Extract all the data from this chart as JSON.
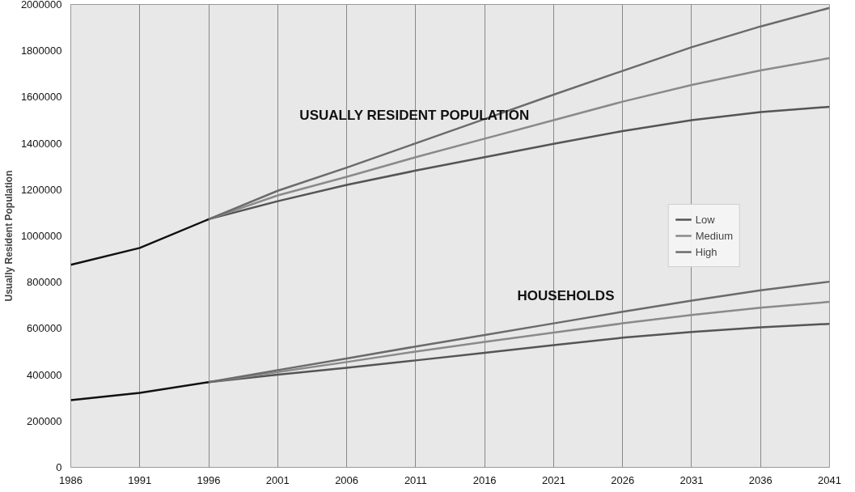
{
  "chart_data": {
    "type": "line",
    "ylabel": "Usually Resident Population",
    "xlim": [
      1986,
      2041
    ],
    "xticks": [
      1986,
      1991,
      1996,
      2001,
      2006,
      2011,
      2016,
      2021,
      2026,
      2031,
      2036,
      2041
    ],
    "ylim": [
      0,
      2000000
    ],
    "yticks": [
      0,
      200000,
      400000,
      600000,
      800000,
      1000000,
      1200000,
      1400000,
      1600000,
      1800000,
      2000000
    ],
    "grid": "x",
    "legend": "right",
    "series": [
      {
        "color": "#111111",
        "x": [
          1986,
          1991,
          1996
        ],
        "values": [
          875000,
          948000,
          1072000
        ]
      },
      {
        "name": "Low",
        "color": "#555555",
        "x": [
          1996,
          2001,
          2006,
          2011,
          2016,
          2021,
          2026,
          2031,
          2036,
          2041
        ],
        "values": [
          1072000,
          1150000,
          1220000,
          1282000,
          1340000,
          1398000,
          1453000,
          1500000,
          1535000,
          1558000
        ]
      },
      {
        "name": "Medium",
        "color": "#8a8a8a",
        "x": [
          1996,
          2001,
          2006,
          2011,
          2016,
          2021,
          2026,
          2031,
          2036,
          2041
        ],
        "values": [
          1072000,
          1175000,
          1255000,
          1340000,
          1420000,
          1500000,
          1580000,
          1652000,
          1715000,
          1768000
        ]
      },
      {
        "name": "High",
        "color": "#6b6b6b",
        "x": [
          1996,
          2001,
          2006,
          2011,
          2016,
          2021,
          2026,
          2031,
          2036,
          2041
        ],
        "values": [
          1072000,
          1195000,
          1295000,
          1400000,
          1505000,
          1610000,
          1713000,
          1815000,
          1905000,
          1985000
        ]
      },
      {
        "color": "#111111",
        "x": [
          1986,
          1991,
          1996
        ],
        "values": [
          290000,
          322000,
          368000
        ]
      },
      {
        "color": "#555555",
        "x": [
          1996,
          2001,
          2006,
          2011,
          2016,
          2021,
          2026,
          2031,
          2036,
          2041
        ],
        "values": [
          368000,
          400000,
          430000,
          462000,
          495000,
          528000,
          560000,
          585000,
          605000,
          620000
        ]
      },
      {
        "color": "#8a8a8a",
        "x": [
          1996,
          2001,
          2006,
          2011,
          2016,
          2021,
          2026,
          2031,
          2036,
          2041
        ],
        "values": [
          368000,
          412000,
          455000,
          500000,
          542000,
          582000,
          622000,
          658000,
          690000,
          715000
        ]
      },
      {
        "color": "#6b6b6b",
        "x": [
          1996,
          2001,
          2006,
          2011,
          2016,
          2021,
          2026,
          2031,
          2036,
          2041
        ],
        "values": [
          368000,
          420000,
          470000,
          522000,
          572000,
          622000,
          672000,
          720000,
          765000,
          802000
        ]
      }
    ],
    "annotations": [
      "USUALLY RESIDENT POPULATION",
      "HOUSEHOLDS"
    ]
  }
}
